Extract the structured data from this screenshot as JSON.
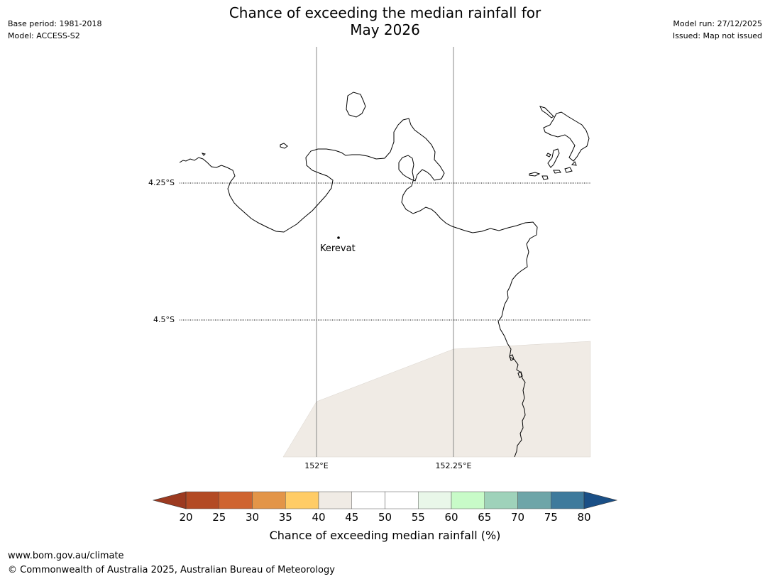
{
  "header": {
    "title_line1": "Chance of exceeding the median rainfall for",
    "title_line2": "May 2026",
    "base_period": "Base period: 1981-2018",
    "model": "Model: ACCESS-S2",
    "model_run": "Model run: 27/12/2025",
    "issued": "Issued: Map not issued"
  },
  "map": {
    "lat_labels": [
      "4.25°S",
      "4.5°S"
    ],
    "lon_labels": [
      "152°E",
      "152.25°E"
    ],
    "place": "Kerevat",
    "shaded_region_color": "#f0ebe5",
    "coastline_color": "#000000"
  },
  "colorbar": {
    "label": "Chance of exceeding median rainfall (%)",
    "ticks": [
      "20",
      "25",
      "30",
      "35",
      "40",
      "45",
      "50",
      "55",
      "60",
      "65",
      "70",
      "75",
      "80"
    ],
    "under_color": "#9c3a20",
    "over_color": "#1a4f86",
    "bins": [
      {
        "range": "20-25",
        "color": "#b34a24"
      },
      {
        "range": "25-30",
        "color": "#cf6430"
      },
      {
        "range": "30-35",
        "color": "#e39548"
      },
      {
        "range": "35-40",
        "color": "#ffcc66"
      },
      {
        "range": "40-45",
        "color": "#f0ebe5"
      },
      {
        "range": "45-50",
        "color": "#ffffff"
      },
      {
        "range": "50-55",
        "color": "#ffffff"
      },
      {
        "range": "55-60",
        "color": "#e9f7e9"
      },
      {
        "range": "60-65",
        "color": "#c8fbc8"
      },
      {
        "range": "65-70",
        "color": "#9fd2ba"
      },
      {
        "range": "70-75",
        "color": "#6ea5a8"
      },
      {
        "range": "75-80",
        "color": "#3e7a9c"
      }
    ]
  },
  "footer": {
    "url": "www.bom.gov.au/climate",
    "copyright": "© Commonwealth of Australia 2025, Australian Bureau of Meteorology"
  }
}
